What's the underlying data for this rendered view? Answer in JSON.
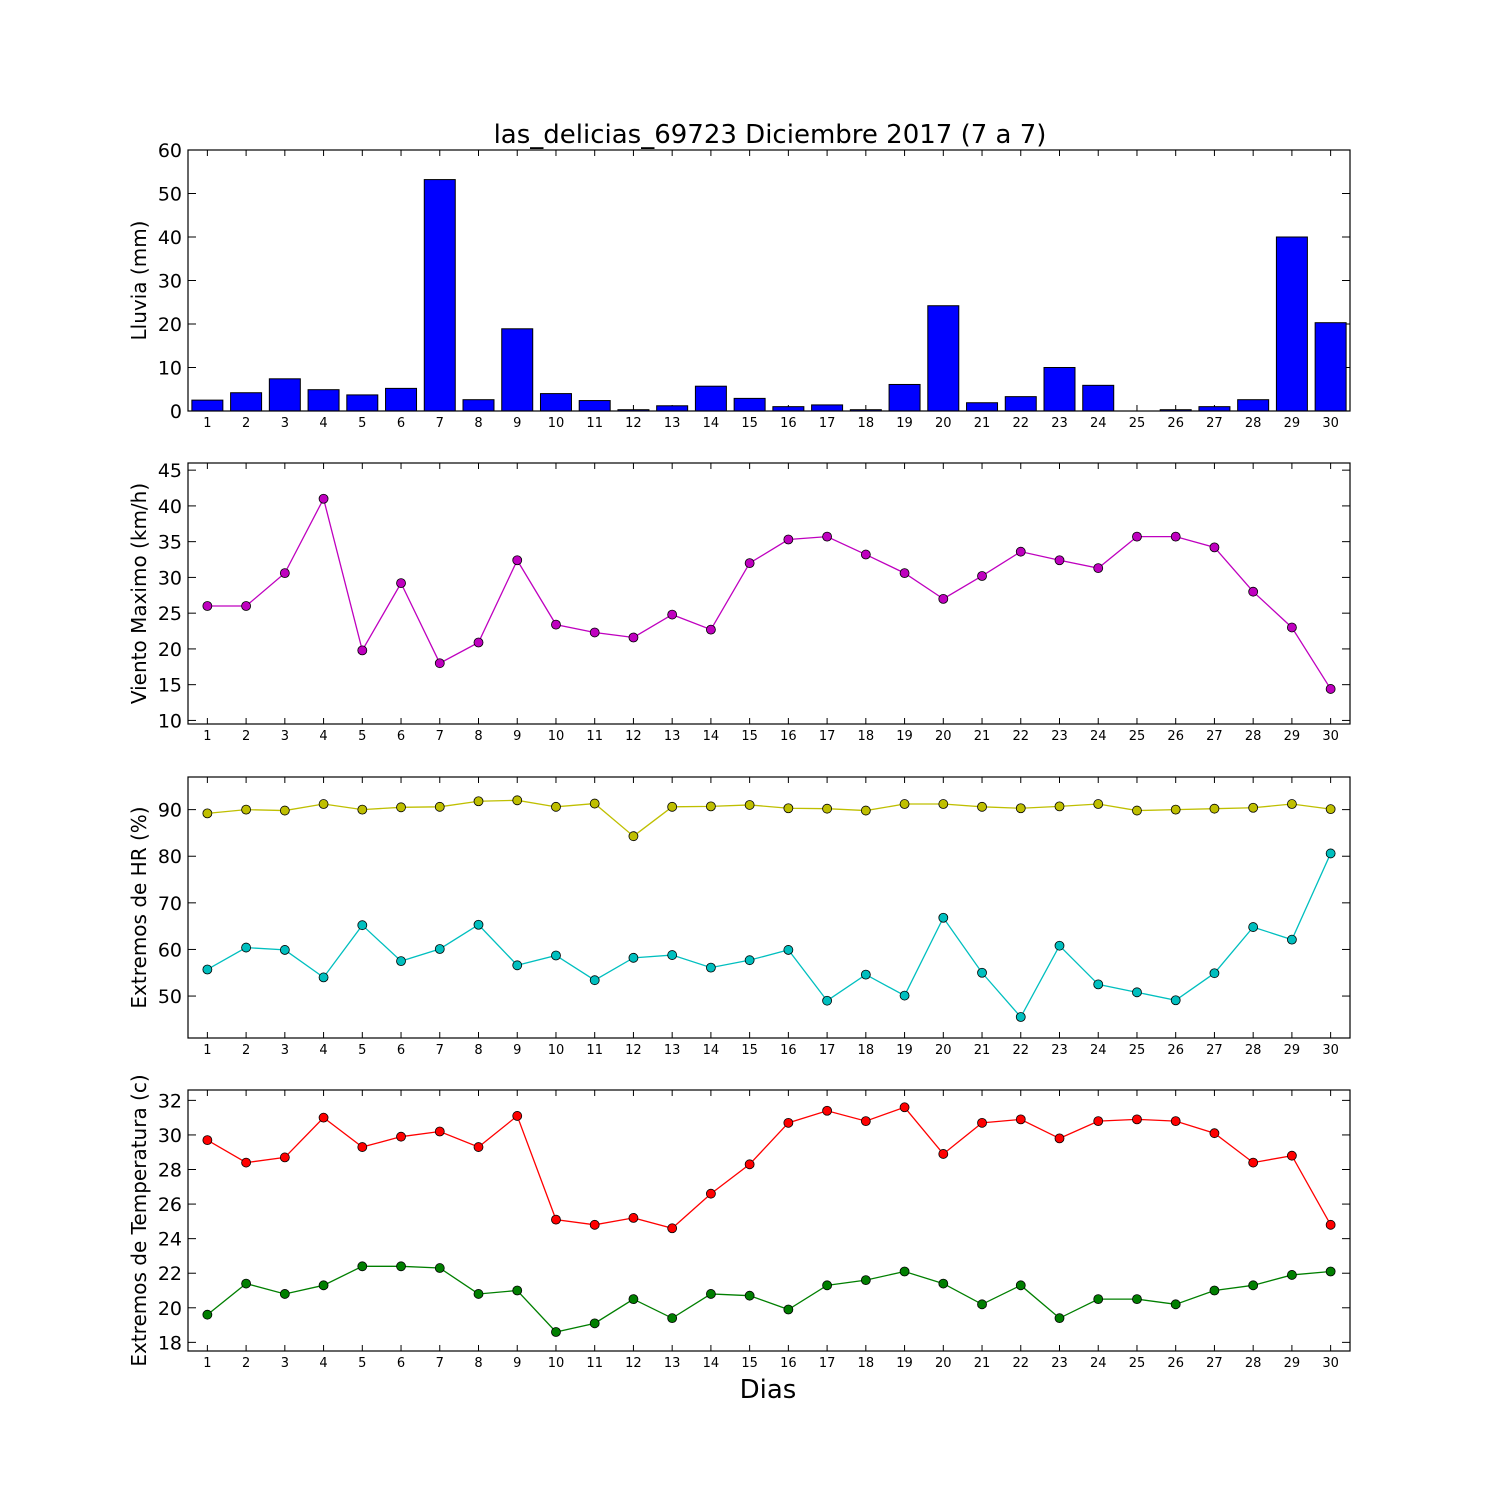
{
  "title": "las_delicias_69723 Diciembre 2017  (7 a 7)",
  "xlabel": "Dias",
  "chart_data": [
    {
      "type": "bar",
      "ylabel": "Lluvia (mm)",
      "x": [
        1,
        2,
        3,
        4,
        5,
        6,
        7,
        8,
        9,
        10,
        11,
        12,
        13,
        14,
        15,
        16,
        17,
        18,
        19,
        20,
        21,
        22,
        23,
        24,
        25,
        26,
        27,
        28,
        29,
        30
      ],
      "series": [
        {
          "color": "#0000ff",
          "values": [
            2.5,
            4.2,
            7.4,
            4.9,
            3.7,
            5.2,
            53.2,
            2.6,
            18.9,
            4.0,
            2.4,
            0.3,
            1.2,
            5.7,
            2.9,
            1.0,
            1.4,
            0.3,
            6.1,
            24.2,
            1.9,
            3.3,
            10.0,
            5.9,
            0.0,
            0.3,
            1.0,
            2.6,
            40.0,
            20.3
          ]
        }
      ],
      "ylim": [
        0,
        60
      ],
      "yticks": [
        0,
        10,
        20,
        30,
        40,
        50,
        60
      ]
    },
    {
      "type": "line",
      "ylabel": "Viento Maximo (km/h)",
      "x": [
        1,
        2,
        3,
        4,
        5,
        6,
        7,
        8,
        9,
        10,
        11,
        12,
        13,
        14,
        15,
        16,
        17,
        18,
        19,
        20,
        21,
        22,
        23,
        24,
        25,
        26,
        27,
        28,
        29,
        30
      ],
      "series": [
        {
          "color": "#bf00bf",
          "values": [
            26,
            26,
            30.6,
            41,
            19.8,
            29.2,
            18,
            20.9,
            32.4,
            23.4,
            22.3,
            21.6,
            24.8,
            22.7,
            32,
            35.3,
            35.7,
            33.2,
            30.6,
            27,
            30.2,
            33.6,
            32.4,
            31.3,
            35.7,
            35.7,
            34.2,
            28,
            23,
            14.4
          ]
        }
      ],
      "ylim": [
        9.5,
        46
      ],
      "yticks": [
        10,
        15,
        20,
        25,
        30,
        35,
        40,
        45
      ]
    },
    {
      "type": "line",
      "ylabel": "Extremos de HR (%)",
      "x": [
        1,
        2,
        3,
        4,
        5,
        6,
        7,
        8,
        9,
        10,
        11,
        12,
        13,
        14,
        15,
        16,
        17,
        18,
        19,
        20,
        21,
        22,
        23,
        24,
        25,
        26,
        27,
        28,
        29,
        30
      ],
      "series": [
        {
          "color": "#bfbf00",
          "values": [
            89.2,
            90,
            89.8,
            91.2,
            90,
            90.5,
            90.6,
            91.8,
            92,
            90.6,
            91.3,
            84.3,
            90.6,
            90.7,
            91,
            90.3,
            90.2,
            89.8,
            91.2,
            91.2,
            90.6,
            90.3,
            90.7,
            91.2,
            89.8,
            90,
            90.2,
            90.4,
            91.2,
            90.1
          ]
        },
        {
          "color": "#00bfbf",
          "values": [
            55.7,
            60.4,
            59.9,
            54,
            65.2,
            57.5,
            60.1,
            65.3,
            56.6,
            58.7,
            53.4,
            58.2,
            58.8,
            56.1,
            57.7,
            59.9,
            49,
            54.6,
            50.1,
            66.8,
            55,
            45.5,
            60.8,
            52.5,
            50.8,
            49.1,
            54.9,
            64.8,
            62.1,
            80.6
          ]
        }
      ],
      "ylim": [
        41,
        97
      ],
      "yticks": [
        50,
        60,
        70,
        80,
        90
      ]
    },
    {
      "type": "line",
      "ylabel": "Extremos de Temperatura (c)",
      "x": [
        1,
        2,
        3,
        4,
        5,
        6,
        7,
        8,
        9,
        10,
        11,
        12,
        13,
        14,
        15,
        16,
        17,
        18,
        19,
        20,
        21,
        22,
        23,
        24,
        25,
        26,
        27,
        28,
        29,
        30
      ],
      "series": [
        {
          "color": "#ff0000",
          "values": [
            29.7,
            28.4,
            28.7,
            31,
            29.3,
            29.9,
            30.2,
            29.3,
            31.1,
            25.1,
            24.8,
            25.2,
            24.6,
            26.6,
            28.3,
            30.7,
            31.4,
            30.8,
            31.6,
            28.9,
            30.7,
            30.9,
            29.8,
            30.8,
            30.9,
            30.8,
            30.1,
            28.4,
            28.8,
            24.8
          ]
        },
        {
          "color": "#007f00",
          "values": [
            19.6,
            21.4,
            20.8,
            21.3,
            22.4,
            22.4,
            22.3,
            20.8,
            21,
            18.6,
            19.1,
            20.5,
            19.4,
            20.8,
            20.7,
            19.9,
            21.3,
            21.6,
            22.1,
            21.4,
            20.2,
            21.3,
            19.4,
            20.5,
            20.5,
            20.2,
            21,
            21.3,
            21.9,
            22.1
          ]
        }
      ],
      "ylim": [
        17.5,
        32.6
      ],
      "yticks": [
        18,
        20,
        22,
        24,
        26,
        28,
        30,
        32
      ]
    }
  ]
}
